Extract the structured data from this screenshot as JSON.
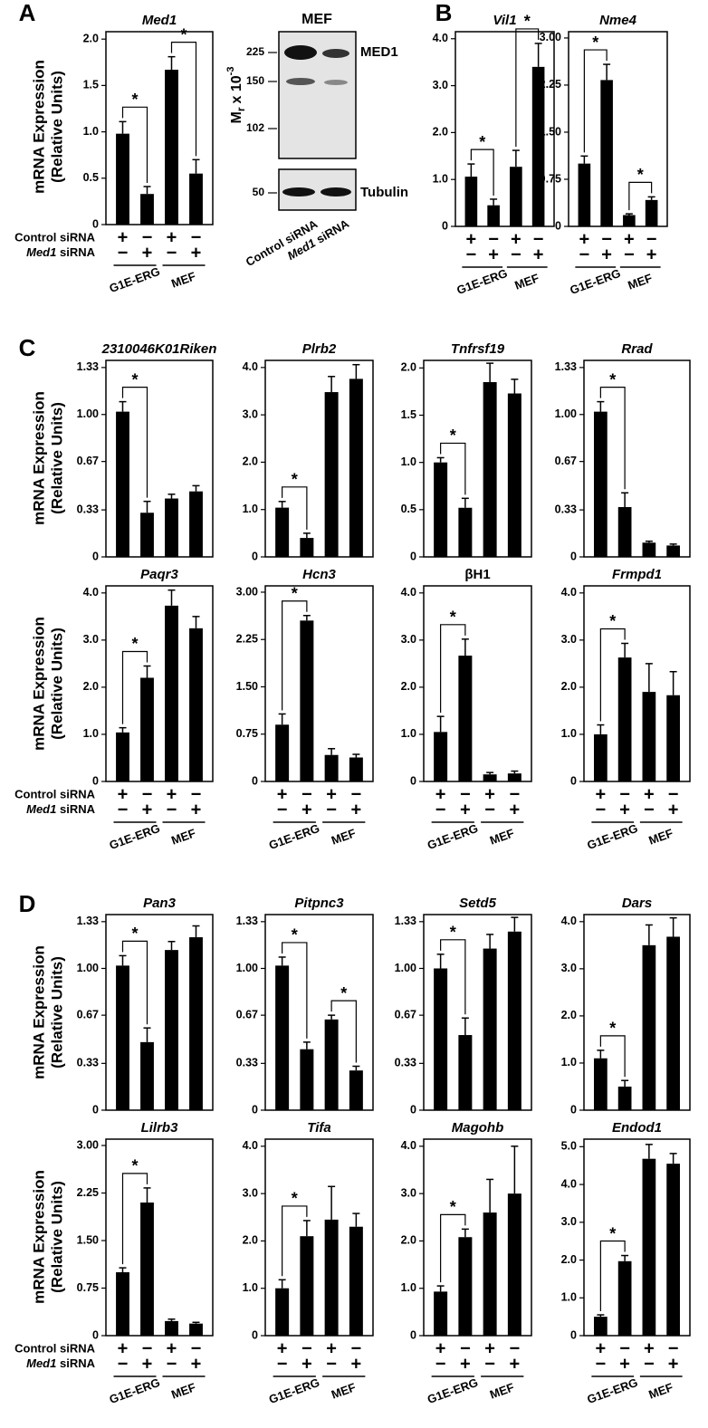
{
  "panel_letters": [
    "A",
    "B",
    "C",
    "D"
  ],
  "y_label": [
    "mRNA Expression",
    "(Relative Units)"
  ],
  "conditions": {
    "control": "Control siRNA",
    "med1": [
      "Med1",
      "siRNA"
    ],
    "control_signs": [
      "+",
      "−",
      "+",
      "−"
    ],
    "med1_signs": [
      "−",
      "+",
      "−",
      "+"
    ],
    "groups": [
      "G1E-ERG",
      "MEF"
    ]
  },
  "blot": {
    "title": "MEF",
    "markers": [
      225,
      150,
      102,
      50
    ],
    "bands": [
      "MED1",
      "Tubulin"
    ],
    "axis_label": [
      "M",
      "r",
      "x 10",
      "-3"
    ]
  },
  "chart_data": [
    {
      "type": "bar",
      "title": "Med1",
      "color": "#000000",
      "values": [
        0.98,
        0.33,
        1.67,
        0.55
      ],
      "errors": [
        0.13,
        0.08,
        0.14,
        0.15
      ],
      "ylim": [
        0,
        2.08
      ],
      "yticks": [
        0,
        0.5,
        {
          "value": 1,
          "label": "1.0"
        },
        1.5,
        {
          "value": 2,
          "label": "2.0"
        }
      ],
      "annotation": "*",
      "brackets": [
        [
          0,
          1
        ],
        [
          2,
          3
        ]
      ],
      "conditions": true
    },
    {
      "type": "bar",
      "title": "Vil1",
      "color": "#000000",
      "values": [
        1.06,
        0.45,
        1.27,
        3.4
      ],
      "errors": [
        0.27,
        0.13,
        0.35,
        0.5
      ],
      "ylim": [
        0,
        4.15
      ],
      "yticks": [
        0,
        {
          "value": 1,
          "label": "1.0"
        },
        {
          "value": 2,
          "label": "2.0"
        },
        {
          "value": 3,
          "label": "3.0"
        },
        {
          "value": 4,
          "label": "4.0"
        }
      ],
      "annotation": "*",
      "brackets": [
        [
          0,
          1
        ],
        [
          2,
          3
        ]
      ],
      "conditions": true
    },
    {
      "type": "bar",
      "title": "Nme4",
      "color": "#000000",
      "values": [
        1.0,
        2.33,
        0.18,
        0.42
      ],
      "errors": [
        0.12,
        0.25,
        0.02,
        0.05
      ],
      "ylim": [
        0,
        3.1
      ],
      "yticks": [
        0,
        0.75,
        {
          "value": 1.5,
          "label": "1.50"
        },
        2.25,
        {
          "value": 3,
          "label": "3.00"
        }
      ],
      "annotation": "*",
      "brackets": [
        [
          0,
          1
        ],
        [
          2,
          3
        ]
      ],
      "conditions": true
    },
    {
      "type": "bar",
      "title": "2310046K01Riken",
      "color": "#000000",
      "values": [
        1.02,
        0.31,
        0.41,
        0.46
      ],
      "errors": [
        0.07,
        0.08,
        0.03,
        0.04
      ],
      "ylim": [
        0,
        1.38
      ],
      "yticks": [
        0,
        0.33,
        0.67,
        {
          "value": 1,
          "label": "1.00"
        },
        1.33
      ],
      "annotation": "*",
      "brackets": [
        [
          0,
          1
        ]
      ],
      "conditions": false
    },
    {
      "type": "bar",
      "title": "Plrb2",
      "color": "#000000",
      "values": [
        1.04,
        0.4,
        3.48,
        3.76
      ],
      "errors": [
        0.13,
        0.1,
        0.33,
        0.3
      ],
      "ylim": [
        0,
        4.15
      ],
      "yticks": [
        0,
        {
          "value": 1,
          "label": "1.0"
        },
        {
          "value": 2,
          "label": "2.0"
        },
        {
          "value": 3,
          "label": "3.0"
        },
        {
          "value": 4,
          "label": "4.0"
        }
      ],
      "annotation": "*",
      "brackets": [
        [
          0,
          1
        ]
      ],
      "conditions": false
    },
    {
      "type": "bar",
      "title": "Tnfrsf19",
      "color": "#000000",
      "values": [
        1.0,
        0.52,
        1.85,
        1.73
      ],
      "errors": [
        0.05,
        0.1,
        0.2,
        0.15
      ],
      "ylim": [
        0,
        2.08
      ],
      "yticks": [
        0,
        0.5,
        {
          "value": 1,
          "label": "1.0"
        },
        1.5,
        {
          "value": 2,
          "label": "2.0"
        }
      ],
      "annotation": "*",
      "brackets": [
        [
          0,
          1
        ]
      ],
      "conditions": false
    },
    {
      "type": "bar",
      "title": "Rrad",
      "color": "#000000",
      "values": [
        1.02,
        0.35,
        0.1,
        0.08
      ],
      "errors": [
        0.07,
        0.1,
        0.01,
        0.01
      ],
      "ylim": [
        0,
        1.38
      ],
      "yticks": [
        0,
        0.33,
        0.67,
        {
          "value": 1,
          "label": "1.00"
        },
        1.33
      ],
      "annotation": "*",
      "brackets": [
        [
          0,
          1
        ]
      ],
      "conditions": false
    },
    {
      "type": "bar",
      "title": "Paqr3",
      "color": "#000000",
      "values": [
        1.04,
        2.2,
        3.73,
        3.25
      ],
      "errors": [
        0.1,
        0.25,
        0.33,
        0.25
      ],
      "ylim": [
        0,
        4.15
      ],
      "yticks": [
        0,
        {
          "value": 1,
          "label": "1.0"
        },
        {
          "value": 2,
          "label": "2.0"
        },
        {
          "value": 3,
          "label": "3.0"
        },
        {
          "value": 4,
          "label": "4.0"
        }
      ],
      "annotation": "*",
      "brackets": [
        [
          0,
          1
        ]
      ],
      "conditions": true
    },
    {
      "type": "bar",
      "title": "Hcn3",
      "color": "#000000",
      "values": [
        0.9,
        2.55,
        0.42,
        0.38
      ],
      "errors": [
        0.17,
        0.08,
        0.1,
        0.05
      ],
      "ylim": [
        0,
        3.1
      ],
      "yticks": [
        0,
        0.75,
        {
          "value": 1.5,
          "label": "1.50"
        },
        2.25,
        {
          "value": 3,
          "label": "3.00"
        }
      ],
      "annotation": "*",
      "brackets": [
        [
          0,
          1
        ]
      ],
      "conditions": true
    },
    {
      "type": "bar",
      "title": "βH1",
      "italic": false,
      "color": "#000000",
      "values": [
        1.05,
        2.67,
        0.15,
        0.17
      ],
      "errors": [
        0.33,
        0.35,
        0.04,
        0.05
      ],
      "ylim": [
        0,
        4.15
      ],
      "yticks": [
        0,
        {
          "value": 1,
          "label": "1.0"
        },
        {
          "value": 2,
          "label": "2.0"
        },
        {
          "value": 3,
          "label": "3.0"
        },
        {
          "value": 4,
          "label": "4.0"
        }
      ],
      "annotation": "*",
      "brackets": [
        [
          0,
          1
        ]
      ],
      "conditions": true
    },
    {
      "type": "bar",
      "title": "Frmpd1",
      "color": "#000000",
      "values": [
        1.0,
        2.63,
        1.9,
        1.83
      ],
      "errors": [
        0.2,
        0.3,
        0.6,
        0.5
      ],
      "ylim": [
        0,
        4.15
      ],
      "yticks": [
        0,
        {
          "value": 1,
          "label": "1.0"
        },
        {
          "value": 2,
          "label": "2.0"
        },
        {
          "value": 3,
          "label": "3.0"
        },
        {
          "value": 4,
          "label": "4.0"
        }
      ],
      "annotation": "*",
      "brackets": [
        [
          0,
          1
        ]
      ],
      "conditions": true
    },
    {
      "type": "bar",
      "title": "Pan3",
      "color": "#000000",
      "values": [
        1.02,
        0.48,
        1.13,
        1.22
      ],
      "errors": [
        0.07,
        0.1,
        0.06,
        0.08
      ],
      "ylim": [
        0,
        1.38
      ],
      "yticks": [
        0,
        0.33,
        0.67,
        {
          "value": 1,
          "label": "1.00"
        },
        1.33
      ],
      "annotation": "*",
      "brackets": [
        [
          0,
          1
        ]
      ],
      "conditions": false
    },
    {
      "type": "bar",
      "title": "Pitpnc3",
      "color": "#000000",
      "values": [
        1.02,
        0.43,
        0.64,
        0.28
      ],
      "errors": [
        0.06,
        0.05,
        0.03,
        0.03
      ],
      "ylim": [
        0,
        1.38
      ],
      "yticks": [
        0,
        0.33,
        0.67,
        {
          "value": 1,
          "label": "1.00"
        },
        1.33
      ],
      "annotation": "*",
      "brackets": [
        [
          0,
          1
        ],
        [
          2,
          3
        ]
      ],
      "conditions": false
    },
    {
      "type": "bar",
      "title": "Setd5",
      "color": "#000000",
      "values": [
        1.0,
        0.53,
        1.14,
        1.26
      ],
      "errors": [
        0.1,
        0.12,
        0.1,
        0.1
      ],
      "ylim": [
        0,
        1.38
      ],
      "yticks": [
        0,
        0.33,
        0.67,
        {
          "value": 1,
          "label": "1.00"
        },
        1.33
      ],
      "annotation": "*",
      "brackets": [
        [
          0,
          1
        ]
      ],
      "conditions": false
    },
    {
      "type": "bar",
      "title": "Dars",
      "color": "#000000",
      "values": [
        1.1,
        0.5,
        3.5,
        3.68
      ],
      "errors": [
        0.17,
        0.13,
        0.43,
        0.4
      ],
      "ylim": [
        0,
        4.15
      ],
      "yticks": [
        0,
        {
          "value": 1,
          "label": "1.0"
        },
        {
          "value": 2,
          "label": "2.0"
        },
        {
          "value": 3,
          "label": "3.0"
        },
        {
          "value": 4,
          "label": "4.0"
        }
      ],
      "annotation": "*",
      "brackets": [
        [
          0,
          1
        ]
      ],
      "conditions": false
    },
    {
      "type": "bar",
      "title": "Lilrb3",
      "color": "#000000",
      "values": [
        1.0,
        2.1,
        0.23,
        0.19
      ],
      "errors": [
        0.07,
        0.23,
        0.03,
        0.02
      ],
      "ylim": [
        0,
        3.1
      ],
      "yticks": [
        0,
        0.75,
        {
          "value": 1.5,
          "label": "1.50"
        },
        2.25,
        {
          "value": 3,
          "label": "3.00"
        }
      ],
      "annotation": "*",
      "brackets": [
        [
          0,
          1
        ]
      ],
      "conditions": true
    },
    {
      "type": "bar",
      "title": "Tifa",
      "color": "#000000",
      "values": [
        1.0,
        2.1,
        2.45,
        2.3
      ],
      "errors": [
        0.18,
        0.33,
        0.7,
        0.28
      ],
      "ylim": [
        0,
        4.15
      ],
      "yticks": [
        0,
        {
          "value": 1,
          "label": "1.0"
        },
        {
          "value": 2,
          "label": "2.0"
        },
        {
          "value": 3,
          "label": "3.0"
        },
        {
          "value": 4,
          "label": "4.0"
        }
      ],
      "annotation": "*",
      "brackets": [
        [
          0,
          1
        ]
      ],
      "conditions": true
    },
    {
      "type": "bar",
      "title": "Magohb",
      "color": "#000000",
      "values": [
        0.93,
        2.08,
        2.6,
        3.0
      ],
      "errors": [
        0.12,
        0.17,
        0.7,
        1.0
      ],
      "ylim": [
        0,
        4.15
      ],
      "yticks": [
        0,
        {
          "value": 1,
          "label": "1.0"
        },
        {
          "value": 2,
          "label": "2.0"
        },
        {
          "value": 3,
          "label": "3.0"
        },
        {
          "value": 4,
          "label": "4.0"
        }
      ],
      "annotation": "*",
      "brackets": [
        [
          0,
          1
        ]
      ],
      "conditions": true
    },
    {
      "type": "bar",
      "title": "Endod1",
      "color": "#000000",
      "values": [
        0.5,
        1.97,
        4.68,
        4.55
      ],
      "errors": [
        0.05,
        0.15,
        0.38,
        0.27
      ],
      "ylim": [
        0,
        5.2
      ],
      "yticks": [
        0,
        {
          "value": 1,
          "label": "1.0"
        },
        {
          "value": 2,
          "label": "2.0"
        },
        {
          "value": 3,
          "label": "3.0"
        },
        {
          "value": 4,
          "label": "4.0"
        },
        {
          "value": 5,
          "label": "5.0"
        }
      ],
      "annotation": "*",
      "brackets": [
        [
          0,
          1
        ]
      ],
      "conditions": true
    }
  ]
}
